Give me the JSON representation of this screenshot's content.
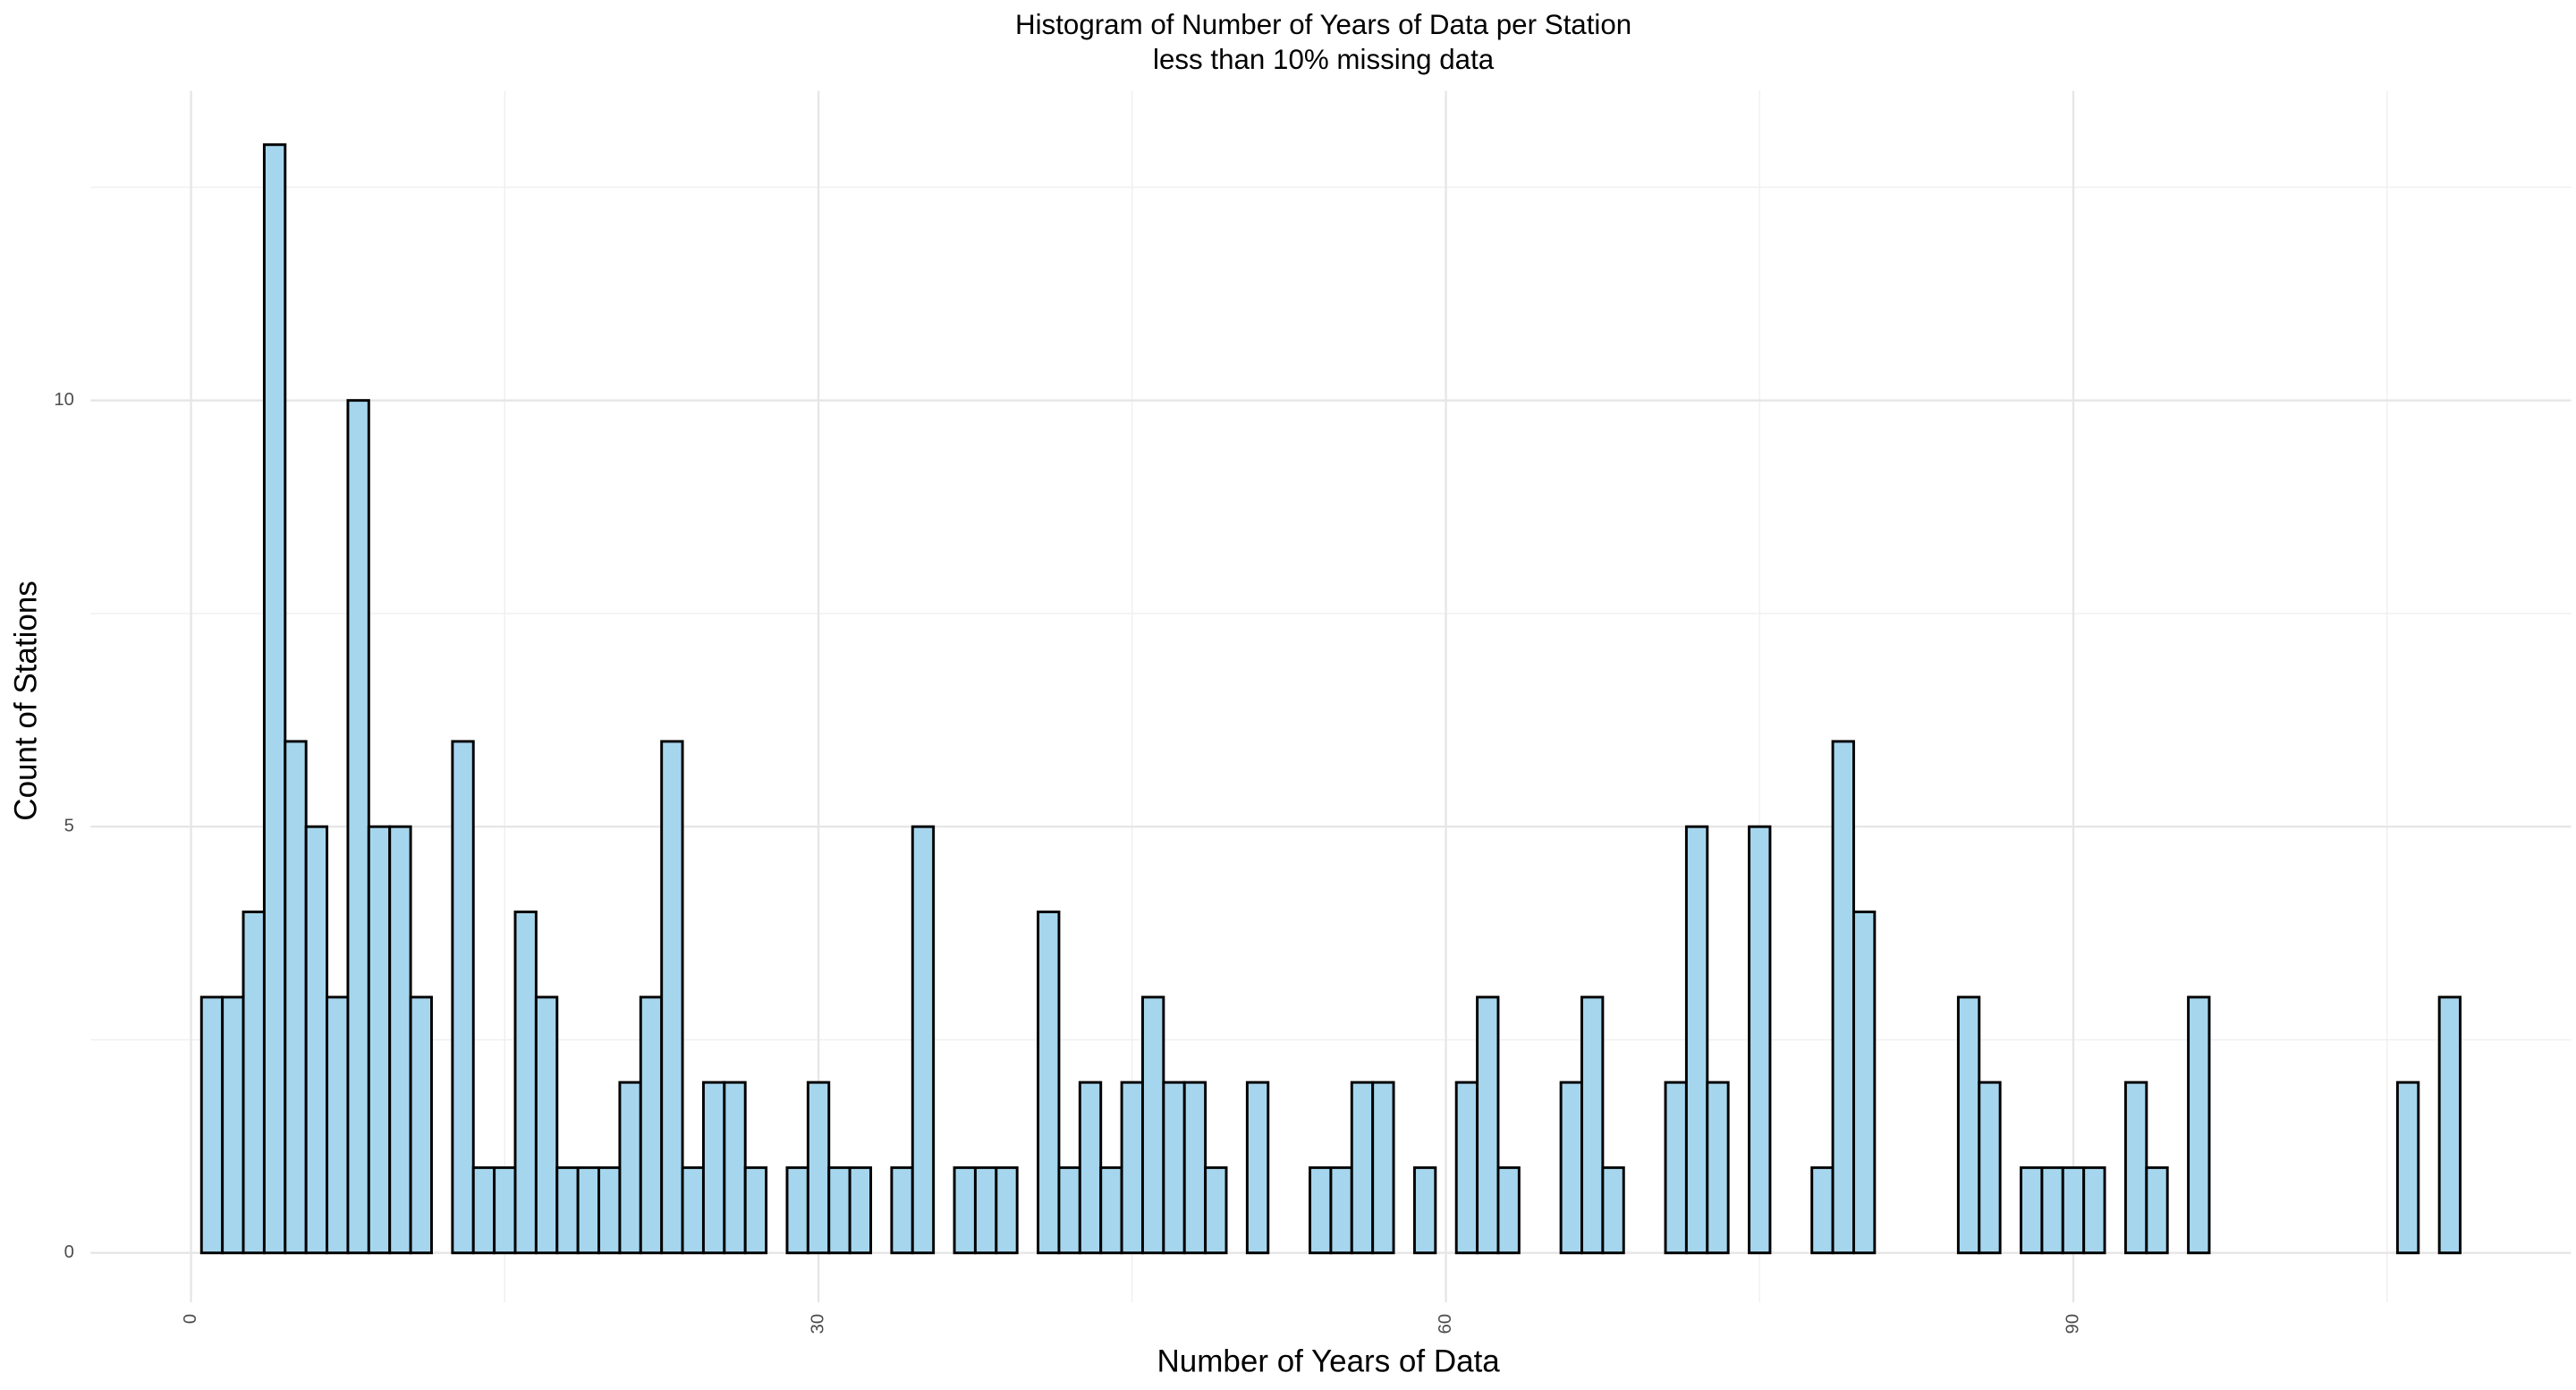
{
  "chart_data": {
    "type": "histogram",
    "title": "Histogram of Number of Years of Data per Station",
    "subtitle": "less than 10% missing data",
    "x_label": "Number of Years of Data",
    "y_label": "Count of Stations",
    "bins": [
      0.5,
      1.5,
      2.5,
      3.5,
      4.5,
      5.5,
      6.5,
      7.5,
      8.5,
      9.5,
      10.5,
      11.5,
      12.5,
      13.5,
      14.5,
      15.5,
      16.5,
      17.5,
      18.5,
      19.5,
      20.5,
      21.5,
      22.5,
      23.5,
      24.5,
      25.5,
      26.5,
      27.5,
      28.5,
      29.5,
      30.5,
      31.5,
      32.5,
      33.5,
      34.5,
      35.5,
      36.5,
      37.5,
      38.5,
      39.5,
      40.5,
      41.5,
      42.5,
      43.5,
      44.5,
      45.5,
      46.5,
      47.5,
      48.5,
      49.5,
      50.5,
      51.5,
      52.5,
      53.5,
      54.5,
      55.5,
      56.5,
      57.5,
      58.5,
      59.5,
      60.5,
      61.5,
      62.5,
      63.5,
      64.5,
      65.5,
      66.5,
      67.5,
      68.5,
      69.5,
      70.5,
      71.5,
      72.5,
      73.5,
      74.5,
      75.5,
      76.5,
      77.5,
      78.5,
      79.5,
      80.5,
      81.5,
      82.5,
      83.5,
      84.5,
      85.5,
      86.5,
      87.5,
      88.5,
      89.5,
      90.5,
      91.5,
      92.5,
      93.5,
      94.5,
      95.5,
      96.5,
      97.5,
      98.5,
      99.5,
      100.5,
      101.5,
      102.5,
      103.5,
      104.5,
      105.5,
      106.5,
      107.5,
      108.5
    ],
    "values": [
      3,
      3,
      4,
      13,
      6,
      5,
      3,
      10,
      5,
      5,
      3,
      0,
      6,
      1,
      1,
      4,
      3,
      1,
      1,
      1,
      2,
      3,
      6,
      1,
      2,
      2,
      1,
      0,
      1,
      2,
      1,
      1,
      0,
      1,
      5,
      0,
      1,
      1,
      1,
      0,
      4,
      1,
      2,
      1,
      2,
      3,
      2,
      2,
      1,
      0,
      2,
      0,
      0,
      1,
      1,
      2,
      2,
      0,
      1,
      0,
      2,
      3,
      1,
      0,
      0,
      2,
      3,
      1,
      0,
      0,
      2,
      5,
      2,
      0,
      5,
      0,
      0,
      1,
      6,
      4,
      0,
      0,
      0,
      0,
      3,
      2,
      0,
      1,
      1,
      1,
      1,
      0,
      2,
      1,
      0,
      3,
      0,
      0,
      0,
      0,
      0,
      0,
      0,
      0,
      0,
      2,
      0,
      3
    ],
    "color": "#a6d6ee",
    "edge_color": "#000000",
    "xlim": [
      -4.8,
      113.8
    ],
    "ylim": [
      -0.58,
      13.63
    ],
    "xticks": [
      0,
      30,
      60,
      90
    ],
    "yticks": [
      0,
      5,
      10
    ],
    "xminor": [
      15,
      45,
      75,
      105
    ],
    "yminor": [
      2.5,
      7.5,
      12.5
    ],
    "grid": true
  }
}
